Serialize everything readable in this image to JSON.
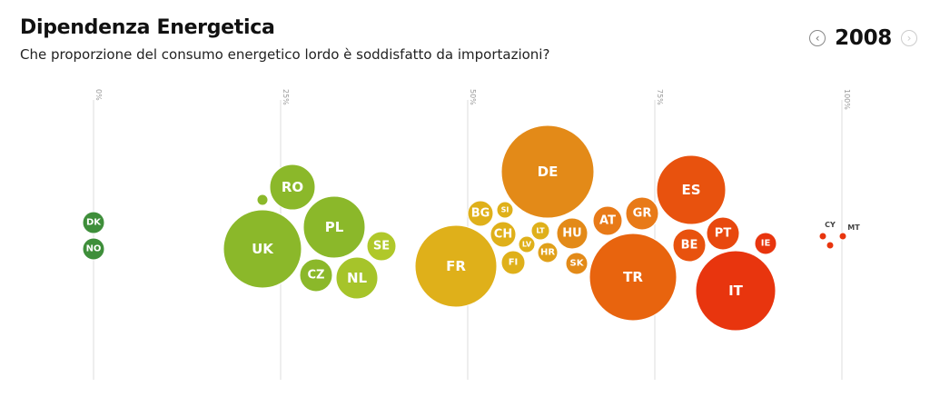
{
  "header": {
    "title": "Dipendenza Energetica",
    "subtitle": "Che proporzione del consumo energetico lordo è soddisfatto da importazioni?"
  },
  "year_nav": {
    "year": "2008",
    "prev_icon": "chevron-left-icon",
    "next_icon": "chevron-right-icon"
  },
  "colors": {
    "low": "#3e8e3a",
    "mid_low": "#8bb82a",
    "mid": "#dfb01a",
    "mid_high": "#e87a18",
    "high": "#e8350e"
  },
  "chart_data": {
    "type": "scatter",
    "title": "Dipendenza Energetica",
    "subtitle": "Che proporzione del consumo energetico lordo è soddisfatto da importazioni?",
    "x_ticks": [
      "0%",
      "25%",
      "50%",
      "75%",
      "100%"
    ],
    "xlim": [
      0,
      100
    ],
    "grid": true,
    "points": [
      {
        "label": "DK",
        "x": -1,
        "size": 12,
        "color": "#3e8e3a"
      },
      {
        "label": "NO",
        "x": 0,
        "size": 12,
        "color": "#3e8e3a"
      },
      {
        "label": "RO",
        "x": 26,
        "size": 25,
        "color": "#8bb82a"
      },
      {
        "label": "",
        "x": 23,
        "size": 6,
        "color": "#8bb82a"
      },
      {
        "label": "UK",
        "x": 23,
        "size": 43,
        "color": "#8bb82a"
      },
      {
        "label": "PL",
        "x": 32,
        "size": 34,
        "color": "#8bb82a"
      },
      {
        "label": "SE",
        "x": 38,
        "size": 16,
        "color": "#b0c82a"
      },
      {
        "label": "CZ",
        "x": 30,
        "size": 18,
        "color": "#8bb82a"
      },
      {
        "label": "NL",
        "x": 35,
        "size": 23,
        "color": "#a6c42a"
      },
      {
        "label": "DE",
        "x": 61,
        "size": 51,
        "color": "#e38a18"
      },
      {
        "label": "BG",
        "x": 51,
        "size": 14,
        "color": "#dfb01a"
      },
      {
        "label": "SI",
        "x": 54,
        "size": 9,
        "color": "#dfb01a"
      },
      {
        "label": "CH",
        "x": 54,
        "size": 14,
        "color": "#dfb01a"
      },
      {
        "label": "LT",
        "x": 58,
        "size": 10,
        "color": "#dfb01a"
      },
      {
        "label": "LV",
        "x": 56,
        "size": 9,
        "color": "#dfb01a"
      },
      {
        "label": "HR",
        "x": 60,
        "size": 11,
        "color": "#e0a01a"
      },
      {
        "label": "HU",
        "x": 64,
        "size": 17,
        "color": "#e38a18"
      },
      {
        "label": "FI",
        "x": 54,
        "size": 13,
        "color": "#dfb01a"
      },
      {
        "label": "SK",
        "x": 65,
        "size": 12,
        "color": "#e38a18"
      },
      {
        "label": "FR",
        "x": 48,
        "size": 45,
        "color": "#dfb01a"
      },
      {
        "label": "AT",
        "x": 69,
        "size": 16,
        "color": "#e87a18"
      },
      {
        "label": "GR",
        "x": 74,
        "size": 18,
        "color": "#e87a18"
      },
      {
        "label": "ES",
        "x": 80,
        "size": 38,
        "color": "#e8520e"
      },
      {
        "label": "TR",
        "x": 72,
        "size": 48,
        "color": "#e8640e"
      },
      {
        "label": "BE",
        "x": 79,
        "size": 18,
        "color": "#e8520e"
      },
      {
        "label": "PT",
        "x": 84,
        "size": 18,
        "color": "#e8480e"
      },
      {
        "label": "IT",
        "x": 86,
        "size": 44,
        "color": "#e8350e"
      },
      {
        "label": "IE",
        "x": 90,
        "size": 12,
        "color": "#e8350e"
      },
      {
        "label": "CY",
        "x": 98,
        "size": 4,
        "color": "#e8350e"
      },
      {
        "label": "MT",
        "x": 100,
        "size": 4,
        "color": "#e8350e"
      },
      {
        "label": "",
        "x": 99,
        "size": 4,
        "color": "#e8350e"
      }
    ]
  }
}
